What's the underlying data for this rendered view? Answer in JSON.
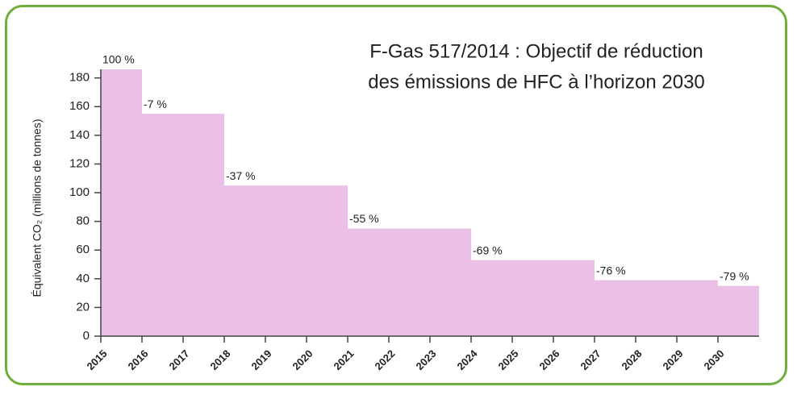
{
  "chart_data": {
    "type": "step",
    "title": [
      "F-Gas 517/2014 : Objectif de réduction",
      "des émissions de HFC à l’horizon 2030"
    ],
    "y_label": "Équivalent CO₂ (millions de tonnes)",
    "x": [
      2015,
      2016,
      2018,
      2021,
      2024,
      2027,
      2030
    ],
    "values": [
      186,
      155,
      105,
      75,
      53,
      39,
      35
    ],
    "reduction": {
      "values": [
        100,
        -7,
        -37,
        -55,
        -69,
        -76,
        -79
      ],
      "value_labels": [
        "100 %",
        "-7 %",
        "-37 %",
        "-55 %",
        "-69 %",
        "-76 %",
        "-79 %"
      ]
    },
    "color": "#ebbfe6",
    "xlim": [
      2015,
      2031
    ],
    "xticks": [
      2015,
      2016,
      2017,
      2018,
      2019,
      2020,
      2021,
      2022,
      2023,
      2024,
      2025,
      2026,
      2027,
      2028,
      2029,
      2030
    ],
    "ylim": [
      0,
      186
    ],
    "yticks": [
      0,
      20,
      40,
      60,
      80,
      100,
      120,
      140,
      160,
      180
    ]
  }
}
